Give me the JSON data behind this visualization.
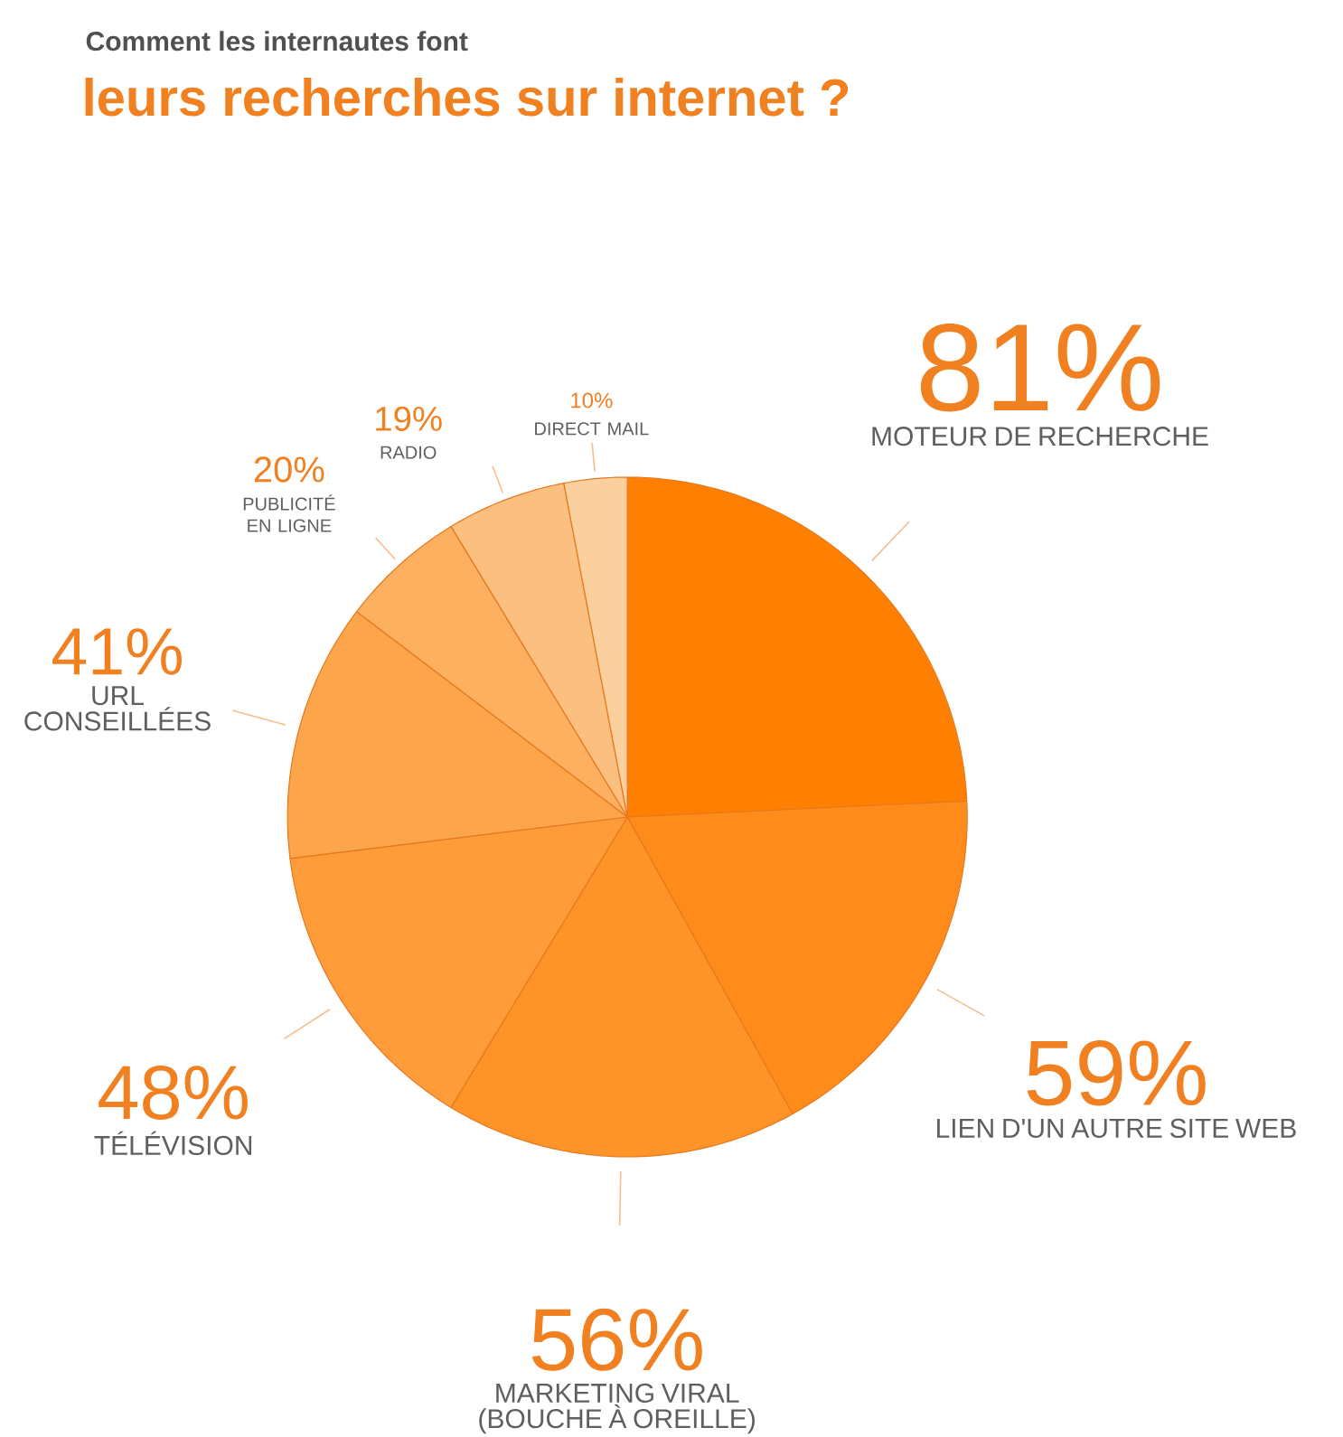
{
  "chart_data": {
    "type": "pie",
    "title": "Comment les internautes font",
    "subtitle": "leurs recherches sur internet ?",
    "categories": [
      "MOTEUR DE RECHERCHE",
      "LIEN D'UN AUTRE SITE WEB",
      "MARKETING VIRAL (BOUCHE À OREILLE)",
      "TÉLÉVISION",
      "URL CONSEILLÉES",
      "PUBLICITÉ EN LIGNE",
      "RADIO",
      "DIRECT MAIL"
    ],
    "values": [
      81,
      59,
      56,
      48,
      41,
      20,
      19,
      10
    ],
    "value_labels": [
      "81%",
      "59%",
      "56%",
      "48%",
      "41%",
      "20%",
      "19%",
      "10%"
    ],
    "colors": [
      "#ff8000",
      "#ff8c1a",
      "#fe9428",
      "#fd9c38",
      "#fca54a",
      "#fcb060",
      "#fbbf80",
      "#fbcf9e"
    ]
  }
}
